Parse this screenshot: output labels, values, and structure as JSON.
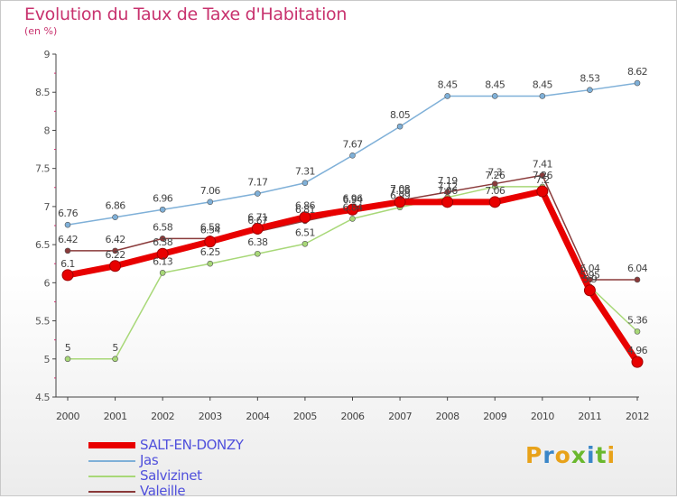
{
  "header": {
    "title": "Evolution du Taux de Taxe d'Habitation",
    "unit": "(en %)"
  },
  "logo": {
    "letters": [
      "P",
      "r",
      "o",
      "x",
      "i",
      "t",
      "i"
    ],
    "colors": [
      "#e8a21a",
      "#3a86c8",
      "#e8a21a",
      "#6ab82e",
      "#3a86c8",
      "#6ab82e",
      "#e8a21a"
    ]
  },
  "chart_data": {
    "type": "line",
    "title": "Evolution du Taux de Taxe d'Habitation",
    "ylabel": "(en %)",
    "xlabel": "",
    "x": [
      "2000",
      "2001",
      "2002",
      "2003",
      "2004",
      "2005",
      "2006",
      "2007",
      "2008",
      "2009",
      "2010",
      "2011",
      "2012"
    ],
    "ylim": [
      4.5,
      9
    ],
    "yticks": [
      "4.5",
      "5",
      "5.5",
      "6",
      "6.5",
      "7",
      "7.5",
      "8",
      "8.5",
      "9"
    ],
    "grid": false,
    "legend_position": "bottom-left",
    "series": [
      {
        "name": "SALT-EN-DONZY",
        "color": "#e80000",
        "width": 7,
        "values": [
          6.1,
          6.22,
          6.38,
          6.54,
          6.71,
          6.86,
          6.96,
          7.06,
          7.06,
          7.06,
          7.2,
          5.9,
          4.96
        ],
        "labels": [
          "6.1",
          "6.22",
          "6.38",
          "6.54",
          "6.71",
          "6.86",
          "6.96",
          "7.06",
          "7.06",
          "7.06",
          "7.2",
          "5.9",
          "4.96"
        ]
      },
      {
        "name": "Jas",
        "color": "#7fb0d8",
        "width": 1.5,
        "values": [
          6.76,
          6.86,
          6.96,
          7.06,
          7.17,
          7.31,
          7.67,
          8.05,
          8.45,
          8.45,
          8.45,
          8.53,
          8.62
        ],
        "labels": [
          "6.76",
          "6.86",
          "6.96",
          "7.06",
          "7.17",
          "7.31",
          "7.67",
          "8.05",
          "8.45",
          "8.45",
          "8.45",
          "8.53",
          "8.62"
        ]
      },
      {
        "name": "Salvizinet",
        "color": "#a8d878",
        "width": 1.5,
        "values": [
          5,
          5,
          6.13,
          6.25,
          6.38,
          6.51,
          6.84,
          6.99,
          7.12,
          7.26,
          7.26,
          5.95,
          5.36
        ],
        "labels": [
          "5",
          "5",
          "6.13",
          "6.25",
          "6.38",
          "6.51",
          "6.84",
          "6.99",
          "7.12",
          "7.26",
          "7.26",
          "5.95",
          "5.36"
        ]
      },
      {
        "name": "Valeille",
        "color": "#8a3a3a",
        "width": 1.5,
        "values": [
          6.42,
          6.42,
          6.58,
          6.58,
          6.67,
          6.81,
          6.94,
          7.08,
          7.19,
          7.3,
          7.41,
          6.04,
          6.04
        ],
        "labels": [
          "6.42",
          "6.42",
          "6.58",
          "6.58",
          "6.67",
          "6.81",
          "6.94",
          "7.08",
          "7.19",
          "7.3",
          "7.41",
          "6.04",
          "6.04"
        ]
      }
    ]
  }
}
